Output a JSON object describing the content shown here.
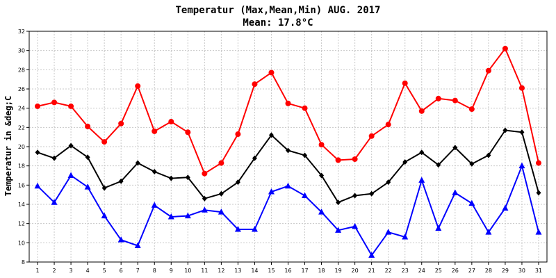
{
  "chart_data": {
    "type": "line",
    "title": "Temperatur (Max,Mean,Min) AUG. 2017",
    "subtitle": "Mean: 17.8°C",
    "xlabel": "",
    "ylabel": "Temperatur in &deg;C",
    "ylim": [
      8,
      32
    ],
    "yticks": [
      8,
      10,
      12,
      14,
      16,
      18,
      20,
      22,
      24,
      26,
      28,
      30,
      32
    ],
    "grid": true,
    "x": [
      1,
      2,
      3,
      4,
      5,
      6,
      7,
      8,
      9,
      10,
      11,
      12,
      13,
      14,
      15,
      16,
      17,
      18,
      19,
      20,
      21,
      22,
      23,
      24,
      25,
      26,
      27,
      28,
      29,
      30,
      31
    ],
    "series": [
      {
        "key": "max",
        "color": "#ff0000",
        "marker": "circle",
        "values": [
          24.2,
          24.6,
          24.2,
          22.1,
          20.5,
          22.4,
          26.3,
          21.6,
          22.6,
          21.5,
          17.2,
          18.3,
          21.3,
          26.5,
          27.7,
          24.5,
          24.0,
          20.2,
          18.6,
          18.7,
          21.1,
          22.3,
          26.6,
          23.7,
          25.0,
          24.8,
          23.9,
          27.9,
          30.2,
          26.1,
          18.3
        ]
      },
      {
        "key": "mean",
        "color": "#000000",
        "marker": "diamond",
        "values": [
          19.4,
          18.8,
          20.1,
          18.9,
          15.7,
          16.4,
          18.3,
          17.4,
          16.7,
          16.8,
          14.6,
          15.1,
          16.3,
          18.8,
          21.2,
          19.6,
          19.1,
          17.0,
          14.2,
          14.9,
          15.1,
          16.3,
          18.4,
          19.4,
          18.1,
          19.9,
          18.2,
          19.1,
          21.7,
          21.5,
          15.2
        ]
      },
      {
        "key": "min",
        "color": "#0000ff",
        "marker": "triangle",
        "values": [
          15.9,
          14.2,
          17.0,
          15.8,
          12.8,
          10.3,
          9.7,
          13.9,
          12.7,
          12.8,
          13.4,
          13.2,
          11.4,
          11.4,
          15.3,
          15.9,
          14.9,
          13.2,
          11.3,
          11.7,
          8.7,
          11.1,
          10.6,
          16.5,
          11.5,
          15.2,
          14.1,
          11.1,
          13.6,
          18.0,
          11.1
        ]
      }
    ]
  }
}
